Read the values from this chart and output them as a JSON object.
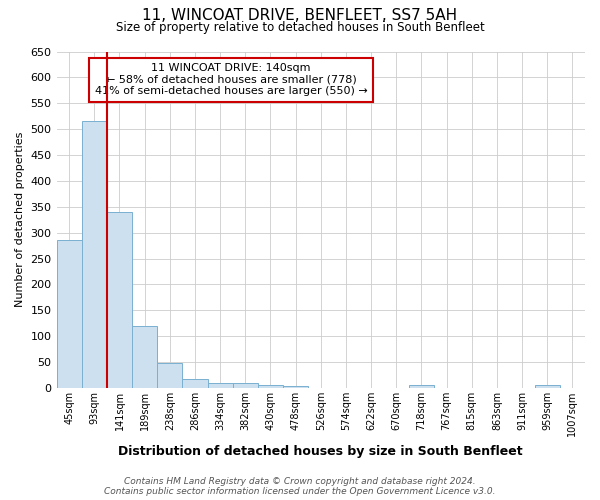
{
  "title": "11, WINCOAT DRIVE, BENFLEET, SS7 5AH",
  "subtitle": "Size of property relative to detached houses in South Benfleet",
  "xlabel": "Distribution of detached houses by size in South Benfleet",
  "ylabel": "Number of detached properties",
  "categories": [
    "45sqm",
    "93sqm",
    "141sqm",
    "189sqm",
    "238sqm",
    "286sqm",
    "334sqm",
    "382sqm",
    "430sqm",
    "478sqm",
    "526sqm",
    "574sqm",
    "622sqm",
    "670sqm",
    "718sqm",
    "767sqm",
    "815sqm",
    "863sqm",
    "911sqm",
    "959sqm",
    "1007sqm"
  ],
  "values": [
    285,
    515,
    340,
    120,
    48,
    18,
    10,
    10,
    5,
    4,
    0,
    0,
    0,
    0,
    5,
    0,
    0,
    0,
    0,
    5,
    0
  ],
  "bar_color": "#cce0f0",
  "bar_edge_color": "#7ab0d0",
  "property_line_idx": 1.5,
  "property_line_color": "#cc0000",
  "annotation_text": "11 WINCOAT DRIVE: 140sqm\n← 58% of detached houses are smaller (778)\n41% of semi-detached houses are larger (550) →",
  "annotation_box_color": "#ffffff",
  "annotation_box_edge": "#cc0000",
  "ylim": [
    0,
    650
  ],
  "yticks": [
    0,
    50,
    100,
    150,
    200,
    250,
    300,
    350,
    400,
    450,
    500,
    550,
    600,
    650
  ],
  "footer_text": "Contains HM Land Registry data © Crown copyright and database right 2024.\nContains public sector information licensed under the Open Government Licence v3.0.",
  "background_color": "#ffffff",
  "grid_color": "#cccccc"
}
